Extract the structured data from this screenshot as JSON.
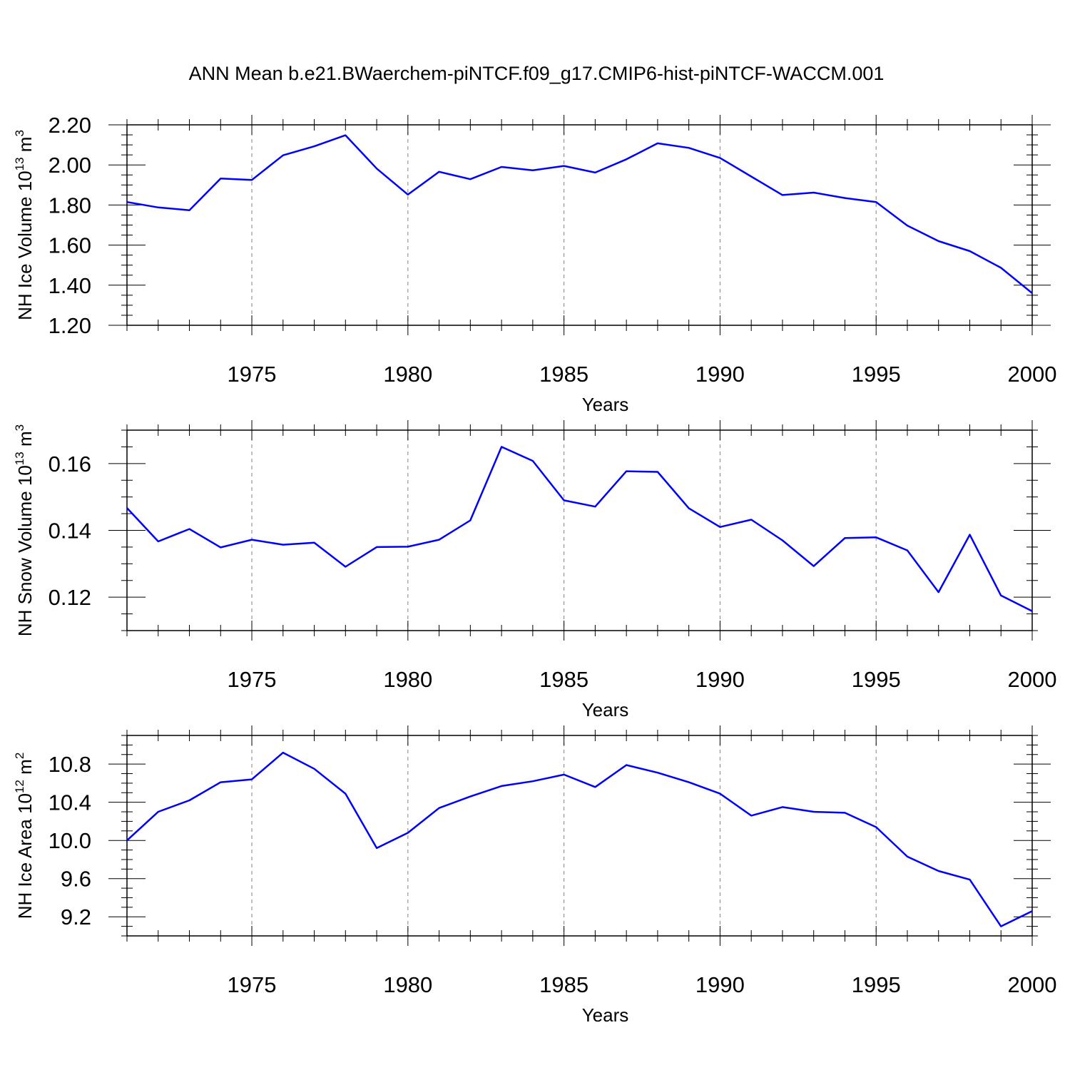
{
  "title": "ANN Mean b.e21.BWaerchem-piNTCF.f09_g17.CMIP6-hist-piNTCF-WACCM.001",
  "colors": {
    "series": "#0000ff",
    "axes": "#000000",
    "grid": "#808080"
  },
  "chart_data": [
    {
      "type": "line",
      "ylabel": {
        "main": "NH Ice Volume 10",
        "exp": "13",
        "unit": " m",
        "unit_exp": "3"
      },
      "xlabel": "Years",
      "xlim": [
        1971,
        2000
      ],
      "ylim": [
        1.2,
        2.2
      ],
      "x_ticks": [
        1975,
        1980,
        1985,
        1990,
        1995,
        2000
      ],
      "y_ticks": [
        1.2,
        1.4,
        1.6,
        1.8,
        2.0,
        2.2
      ],
      "y_tick_labels": [
        "1.20",
        "1.40",
        "1.60",
        "1.80",
        "2.00",
        "2.20"
      ],
      "y_minor": 0.05,
      "grid": "vertical-dashed",
      "x": [
        1971,
        1972,
        1973,
        1974,
        1975,
        1976,
        1977,
        1978,
        1979,
        1980,
        1981,
        1982,
        1983,
        1984,
        1985,
        1986,
        1987,
        1988,
        1989,
        1990,
        1991,
        1992,
        1993,
        1994,
        1995,
        1996,
        1997,
        1998,
        1999,
        2000
      ],
      "values": [
        1.815,
        1.788,
        1.774,
        1.932,
        1.925,
        2.048,
        2.093,
        2.148,
        1.982,
        1.852,
        1.966,
        1.929,
        1.99,
        1.973,
        1.995,
        1.962,
        2.028,
        2.108,
        2.085,
        2.035,
        1.942,
        1.85,
        1.862,
        1.835,
        1.815,
        1.697,
        1.62,
        1.57,
        1.487,
        1.36
      ]
    },
    {
      "type": "line",
      "ylabel": {
        "main": "NH Snow Volume 10",
        "exp": "13",
        "unit": " m",
        "unit_exp": "3"
      },
      "xlabel": "Years",
      "xlim": [
        1971,
        2000
      ],
      "ylim": [
        0.11,
        0.17
      ],
      "x_ticks": [
        1975,
        1980,
        1985,
        1990,
        1995,
        2000
      ],
      "y_ticks": [
        0.12,
        0.14,
        0.16
      ],
      "y_tick_labels": [
        "0.12",
        "0.14",
        "0.16"
      ],
      "y_minor": 0.005,
      "grid": "vertical-dashed",
      "x": [
        1971,
        1972,
        1973,
        1974,
        1975,
        1976,
        1977,
        1978,
        1979,
        1980,
        1981,
        1982,
        1983,
        1984,
        1985,
        1986,
        1987,
        1988,
        1989,
        1990,
        1991,
        1992,
        1993,
        1994,
        1995,
        1996,
        1997,
        1998,
        1999,
        2000
      ],
      "values": [
        0.1467,
        0.1367,
        0.1404,
        0.1349,
        0.1372,
        0.1357,
        0.1363,
        0.1291,
        0.135,
        0.1351,
        0.1372,
        0.143,
        0.165,
        0.1608,
        0.149,
        0.1471,
        0.1577,
        0.1575,
        0.1466,
        0.141,
        0.1432,
        0.137,
        0.1293,
        0.1377,
        0.1379,
        0.134,
        0.1215,
        0.1387,
        0.1205,
        0.1158
      ]
    },
    {
      "type": "line",
      "ylabel": {
        "main": "NH Ice Area 10",
        "exp": "12",
        "unit": " m",
        "unit_exp": "2"
      },
      "xlabel": "Years",
      "xlim": [
        1971,
        2000
      ],
      "ylim": [
        9.0,
        11.1
      ],
      "x_ticks": [
        1975,
        1980,
        1985,
        1990,
        1995,
        2000
      ],
      "y_ticks": [
        9.2,
        9.6,
        10.0,
        10.4,
        10.8
      ],
      "y_tick_labels": [
        "9.2",
        "9.6",
        "10.0",
        "10.4",
        "10.8"
      ],
      "y_minor": 0.1,
      "grid": "vertical-dashed",
      "x": [
        1971,
        1972,
        1973,
        1974,
        1975,
        1976,
        1977,
        1978,
        1979,
        1980,
        1981,
        1982,
        1983,
        1984,
        1985,
        1986,
        1987,
        1988,
        1989,
        1990,
        1991,
        1992,
        1993,
        1994,
        1995,
        1996,
        1997,
        1998,
        1999,
        2000
      ],
      "values": [
        10.0,
        10.3,
        10.42,
        10.61,
        10.64,
        10.92,
        10.75,
        10.49,
        9.92,
        10.08,
        10.34,
        10.46,
        10.57,
        10.62,
        10.69,
        10.56,
        10.79,
        10.71,
        10.61,
        10.49,
        10.26,
        10.35,
        10.3,
        10.29,
        10.14,
        9.83,
        9.68,
        9.59,
        9.1,
        9.26
      ]
    }
  ]
}
